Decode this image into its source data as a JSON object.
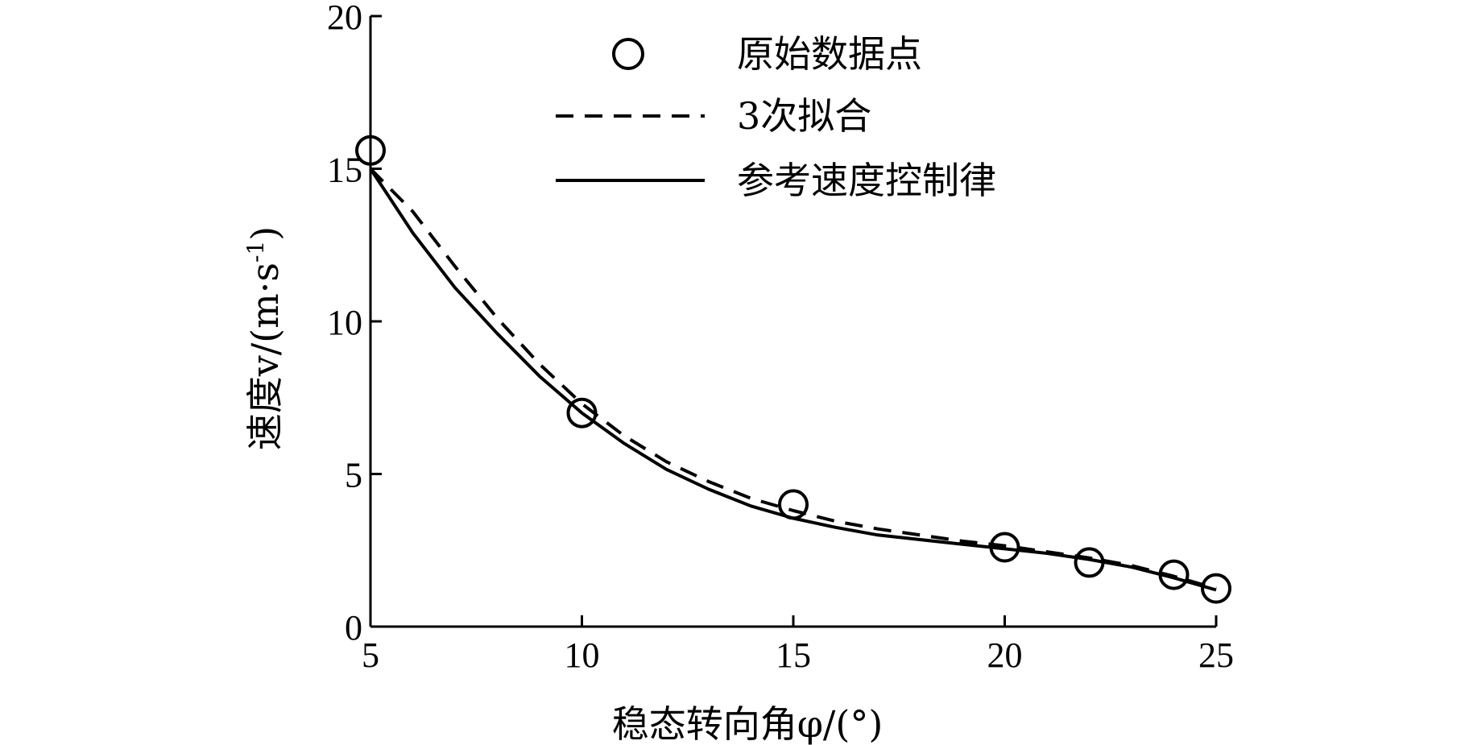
{
  "chart_data": {
    "type": "line",
    "xlabel": "稳态转向角φ/(°)",
    "ylabel_main": "速度v/(m·s",
    "ylabel_sup": "-1",
    "ylabel_close": ")",
    "xlim": [
      5,
      25
    ],
    "ylim": [
      0,
      20
    ],
    "x_ticks": [
      "5",
      "10",
      "15",
      "20",
      "25"
    ],
    "y_ticks": [
      "0",
      "5",
      "10",
      "15",
      "20"
    ],
    "grid": false,
    "legend_position": "top-right",
    "series": [
      {
        "name": "原始数据点",
        "style": "markers",
        "x": [
          5,
          10,
          15,
          20,
          22,
          24,
          25
        ],
        "y": [
          15.6,
          7.0,
          4.0,
          2.6,
          2.1,
          1.7,
          1.25
        ]
      },
      {
        "name": "3次拟合",
        "style": "dashed",
        "x": [
          5,
          6,
          7,
          8,
          9,
          10,
          11,
          12,
          13,
          14,
          15,
          16,
          17,
          18,
          19,
          20,
          21,
          22,
          23,
          24,
          25
        ],
        "y": [
          15.0,
          13.6,
          11.8,
          10.1,
          8.6,
          7.3,
          6.25,
          5.4,
          4.75,
          4.2,
          3.8,
          3.45,
          3.2,
          3.0,
          2.8,
          2.65,
          2.45,
          2.25,
          2.0,
          1.65,
          1.25
        ]
      },
      {
        "name": "参考速度控制律",
        "style": "solid",
        "x": [
          5,
          6,
          7,
          8,
          9,
          10,
          11,
          12,
          13,
          14,
          15,
          16,
          17,
          18,
          19,
          20,
          21,
          22,
          23,
          24,
          25
        ],
        "y": [
          15.0,
          12.9,
          11.1,
          9.6,
          8.2,
          7.0,
          6.0,
          5.15,
          4.5,
          3.95,
          3.55,
          3.25,
          3.0,
          2.85,
          2.7,
          2.55,
          2.4,
          2.2,
          1.95,
          1.6,
          1.2
        ]
      }
    ]
  }
}
